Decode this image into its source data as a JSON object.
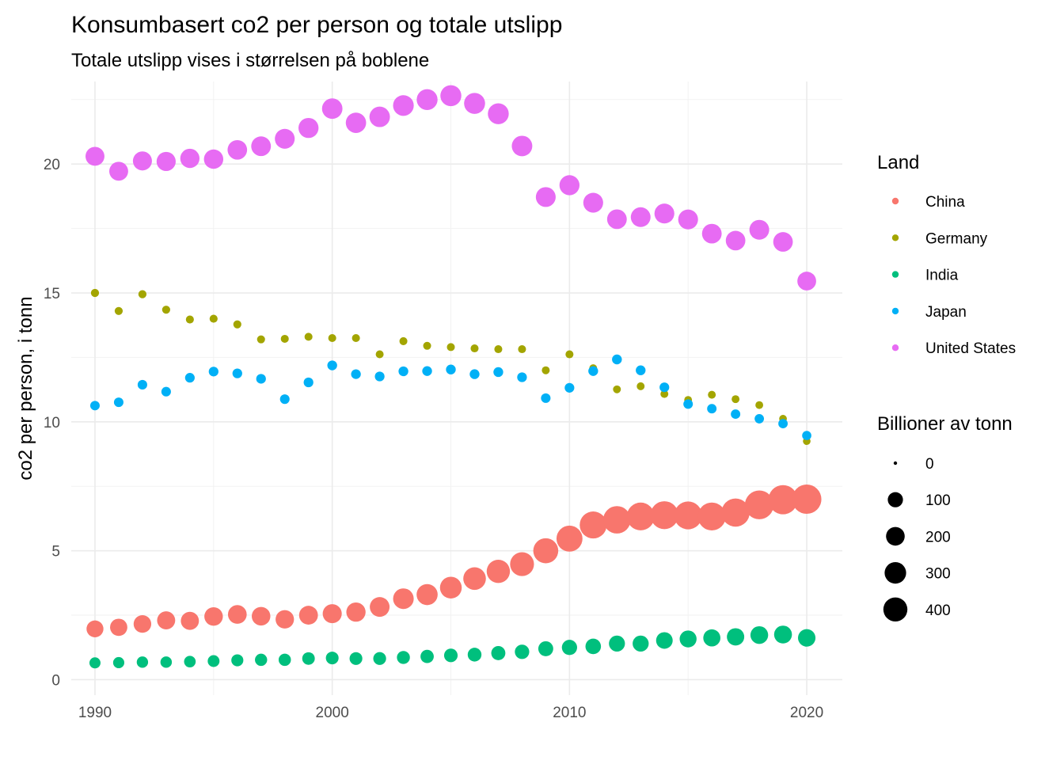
{
  "chart_data": {
    "type": "scatter",
    "title": "Konsumbasert co2 per person og totale utslipp",
    "subtitle": "Totale utslipp vises i størrelsen på boblene",
    "xlabel": "",
    "ylabel": "co2 per person, i tonn",
    "xlim": [
      1989,
      2021.5
    ],
    "ylim": [
      -0.6,
      23.2
    ],
    "x_ticks": [
      1990,
      2000,
      2010,
      2020
    ],
    "y_ticks": [
      0,
      5,
      10,
      15,
      20
    ],
    "grid": true,
    "legend_position": "right",
    "color_legend_title": "Land",
    "size_legend_title": "Billioner av tonn",
    "size_legend_values": [
      0,
      100,
      200,
      300,
      400
    ],
    "x": [
      1990,
      1991,
      1992,
      1993,
      1994,
      1995,
      1996,
      1997,
      1998,
      1999,
      2000,
      2001,
      2002,
      2003,
      2004,
      2005,
      2006,
      2007,
      2008,
      2009,
      2010,
      2011,
      2012,
      2013,
      2014,
      2015,
      2016,
      2017,
      2018,
      2019,
      2020
    ],
    "series": [
      {
        "name": "China",
        "color": "#F8766D",
        "values": [
          1.97,
          2.03,
          2.16,
          2.3,
          2.28,
          2.45,
          2.53,
          2.46,
          2.34,
          2.5,
          2.56,
          2.62,
          2.82,
          3.14,
          3.3,
          3.57,
          3.92,
          4.2,
          4.48,
          5.0,
          5.47,
          6.0,
          6.2,
          6.33,
          6.38,
          6.37,
          6.33,
          6.48,
          6.78,
          6.98,
          7.0
        ],
        "sizes": [
          230,
          245,
          260,
          280,
          280,
          300,
          310,
          305,
          295,
          315,
          325,
          335,
          360,
          405,
          430,
          470,
          520,
          560,
          600,
          675,
          745,
          820,
          855,
          880,
          890,
          890,
          890,
          915,
          965,
          995,
          1005
        ]
      },
      {
        "name": "Germany",
        "color": "#A3A500",
        "values": [
          15.0,
          14.3,
          14.95,
          14.35,
          13.97,
          14.0,
          13.78,
          13.2,
          13.22,
          13.3,
          13.25,
          13.25,
          12.62,
          13.13,
          12.95,
          12.9,
          12.85,
          12.82,
          12.82,
          12.0,
          12.62,
          12.08,
          11.26,
          11.38,
          11.08,
          10.85,
          11.05,
          10.88,
          10.65,
          10.12,
          9.25
        ],
        "sizes": [
          12,
          11.5,
          12,
          11.5,
          11,
          11,
          11,
          10.5,
          10.5,
          10.5,
          10.5,
          10.5,
          10,
          10.5,
          10.5,
          10.5,
          10.5,
          10.5,
          10.5,
          10,
          10.5,
          10,
          9.5,
          9.5,
          9.5,
          9,
          9.5,
          9.5,
          9,
          8.5,
          7.5
        ]
      },
      {
        "name": "India",
        "color": "#00BF7D",
        "values": [
          0.65,
          0.66,
          0.68,
          0.68,
          0.7,
          0.72,
          0.75,
          0.77,
          0.77,
          0.82,
          0.84,
          0.82,
          0.82,
          0.86,
          0.9,
          0.94,
          0.97,
          1.03,
          1.08,
          1.2,
          1.25,
          1.29,
          1.4,
          1.4,
          1.52,
          1.58,
          1.62,
          1.66,
          1.73,
          1.75,
          1.62
        ],
        "sizes": [
          55,
          57,
          60,
          62,
          66,
          70,
          75,
          79,
          81,
          88,
          92,
          93,
          95,
          98,
          107,
          115,
          121,
          131,
          140,
          158,
          168,
          177,
          195,
          198,
          218,
          231,
          240,
          249,
          264,
          270,
          254
        ]
      },
      {
        "name": "Japan",
        "color": "#00B0F6",
        "values": [
          10.63,
          10.76,
          11.44,
          11.17,
          11.71,
          11.95,
          11.88,
          11.67,
          10.88,
          11.53,
          12.19,
          11.85,
          11.76,
          11.96,
          11.97,
          12.03,
          11.85,
          11.93,
          11.73,
          10.92,
          11.32,
          11.97,
          12.42,
          12.0,
          11.34,
          10.69,
          10.51,
          10.3,
          10.12,
          9.93,
          9.47
        ],
        "sizes": [
          28,
          28,
          29,
          29,
          30,
          31,
          31,
          31,
          29,
          31,
          32,
          31,
          31,
          32,
          32,
          32,
          32,
          32,
          31,
          29,
          30,
          32,
          33,
          32,
          30,
          28,
          27,
          27,
          26,
          26,
          24
        ]
      },
      {
        "name": "United States",
        "color": "#E76BF3",
        "values": [
          20.3,
          19.72,
          20.12,
          20.1,
          20.22,
          20.19,
          20.55,
          20.69,
          20.98,
          21.4,
          22.15,
          21.6,
          21.83,
          22.27,
          22.5,
          22.65,
          22.35,
          21.95,
          20.7,
          18.72,
          19.18,
          18.5,
          17.86,
          17.94,
          18.08,
          17.85,
          17.3,
          17.03,
          17.45,
          16.98,
          15.46
        ],
        "sizes": [
          320,
          318,
          325,
          330,
          335,
          340,
          350,
          357,
          365,
          376,
          395,
          390,
          398,
          410,
          418,
          425,
          425,
          420,
          400,
          364,
          375,
          365,
          355,
          360,
          365,
          364,
          355,
          351,
          362,
          352,
          313
        ]
      }
    ]
  }
}
